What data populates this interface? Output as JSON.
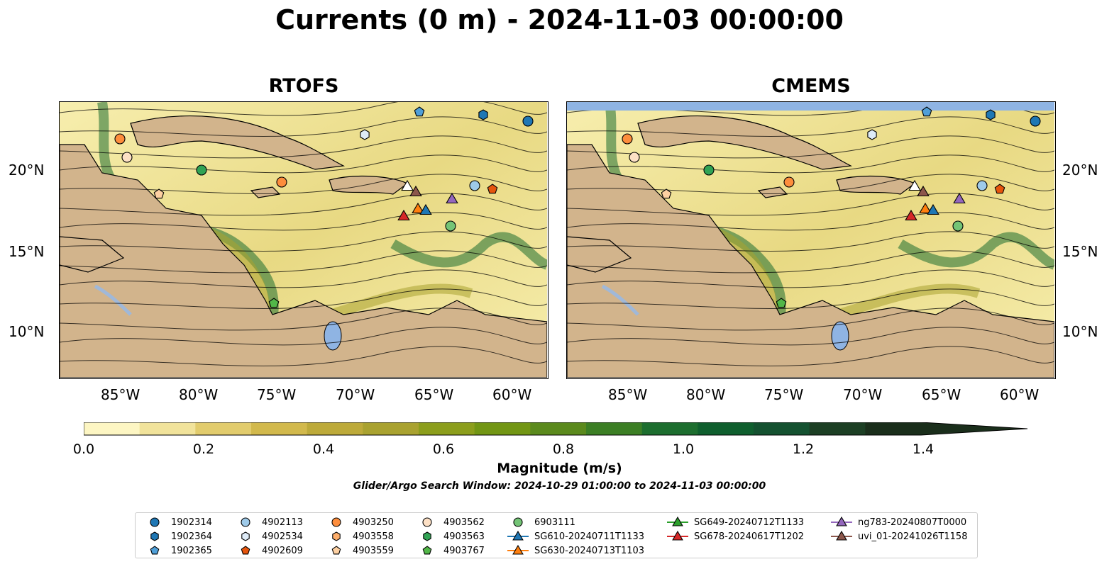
{
  "title": "Currents (0 m) - 2024-11-03 00:00:00",
  "panels": [
    {
      "title": "RTOFS"
    },
    {
      "title": "CMEMS"
    }
  ],
  "lon_labels": [
    "85°W",
    "80°W",
    "75°W",
    "70°W",
    "65°W",
    "60°W"
  ],
  "lat_labels": [
    "20°N",
    "15°N",
    "10°N"
  ],
  "colorbar": {
    "label": "Magnitude (m/s)",
    "tick_labels": [
      "0.0",
      "0.2",
      "0.4",
      "0.6",
      "0.8",
      "1.0",
      "1.2",
      "1.4"
    ],
    "colors": [
      "#fdf6c3",
      "#f1e39b",
      "#e2cc6d",
      "#d2b94c",
      "#bdaa3a",
      "#a9a230",
      "#8c9e1c",
      "#729614",
      "#5b8a1d",
      "#3c7f25",
      "#1d6e2f",
      "#0f5f2e",
      "#145130",
      "#1c3f24",
      "#1a2e1b"
    ]
  },
  "search_window": "Glider/Argo Search Window: 2024-10-29 01:00:00 to 2024-11-03 00:00:00",
  "colors": {
    "land": "#d2b48c",
    "lake": "#8fb4e3",
    "water_low": "#f7eeae",
    "water_mid": "#a9a230",
    "water_high": "#1d6e2f",
    "river": "#a0b8d8"
  },
  "legend": [
    {
      "label": "1902314",
      "marker": "circle",
      "color": "#1f77b4"
    },
    {
      "label": "1902364",
      "marker": "hexagon",
      "color": "#1f77b4"
    },
    {
      "label": "1902365",
      "marker": "pentagon",
      "color": "#4f9fd8"
    },
    {
      "label": "4902113",
      "marker": "circle",
      "color": "#9ecae9"
    },
    {
      "label": "4902534",
      "marker": "hexagon",
      "color": "#deebf7"
    },
    {
      "label": "4902609",
      "marker": "pentagon",
      "color": "#e6550d"
    },
    {
      "label": "4903250",
      "marker": "circle",
      "color": "#fd8d3c"
    },
    {
      "label": "4903558",
      "marker": "hexagon",
      "color": "#fdae6b"
    },
    {
      "label": "4903559",
      "marker": "pentagon",
      "color": "#fdd0a2"
    },
    {
      "label": "4903562",
      "marker": "circle",
      "color": "#fde0c5"
    },
    {
      "label": "4903563",
      "marker": "hexagon",
      "color": "#31a354"
    },
    {
      "label": "4903767",
      "marker": "pentagon",
      "color": "#52b748"
    },
    {
      "label": "6903111",
      "marker": "circle",
      "color": "#74c476"
    },
    {
      "label": "SG610-20240711T1133",
      "marker": "triangle",
      "color": "#1f77b4"
    },
    {
      "label": "SG630-20240713T1103",
      "marker": "triangle",
      "color": "#ff7f0e"
    },
    {
      "label": "SG649-20240712T1133",
      "marker": "triangle",
      "color": "#2ca02c"
    },
    {
      "label": "SG678-20240617T1202",
      "marker": "triangle",
      "color": "#d62728"
    },
    {
      "label": "ng783-20240807T0000",
      "marker": "triangle",
      "color": "#9467bd"
    },
    {
      "label": "uvi_01-20241026T1158",
      "marker": "triangle",
      "color": "#8c564b"
    }
  ]
}
